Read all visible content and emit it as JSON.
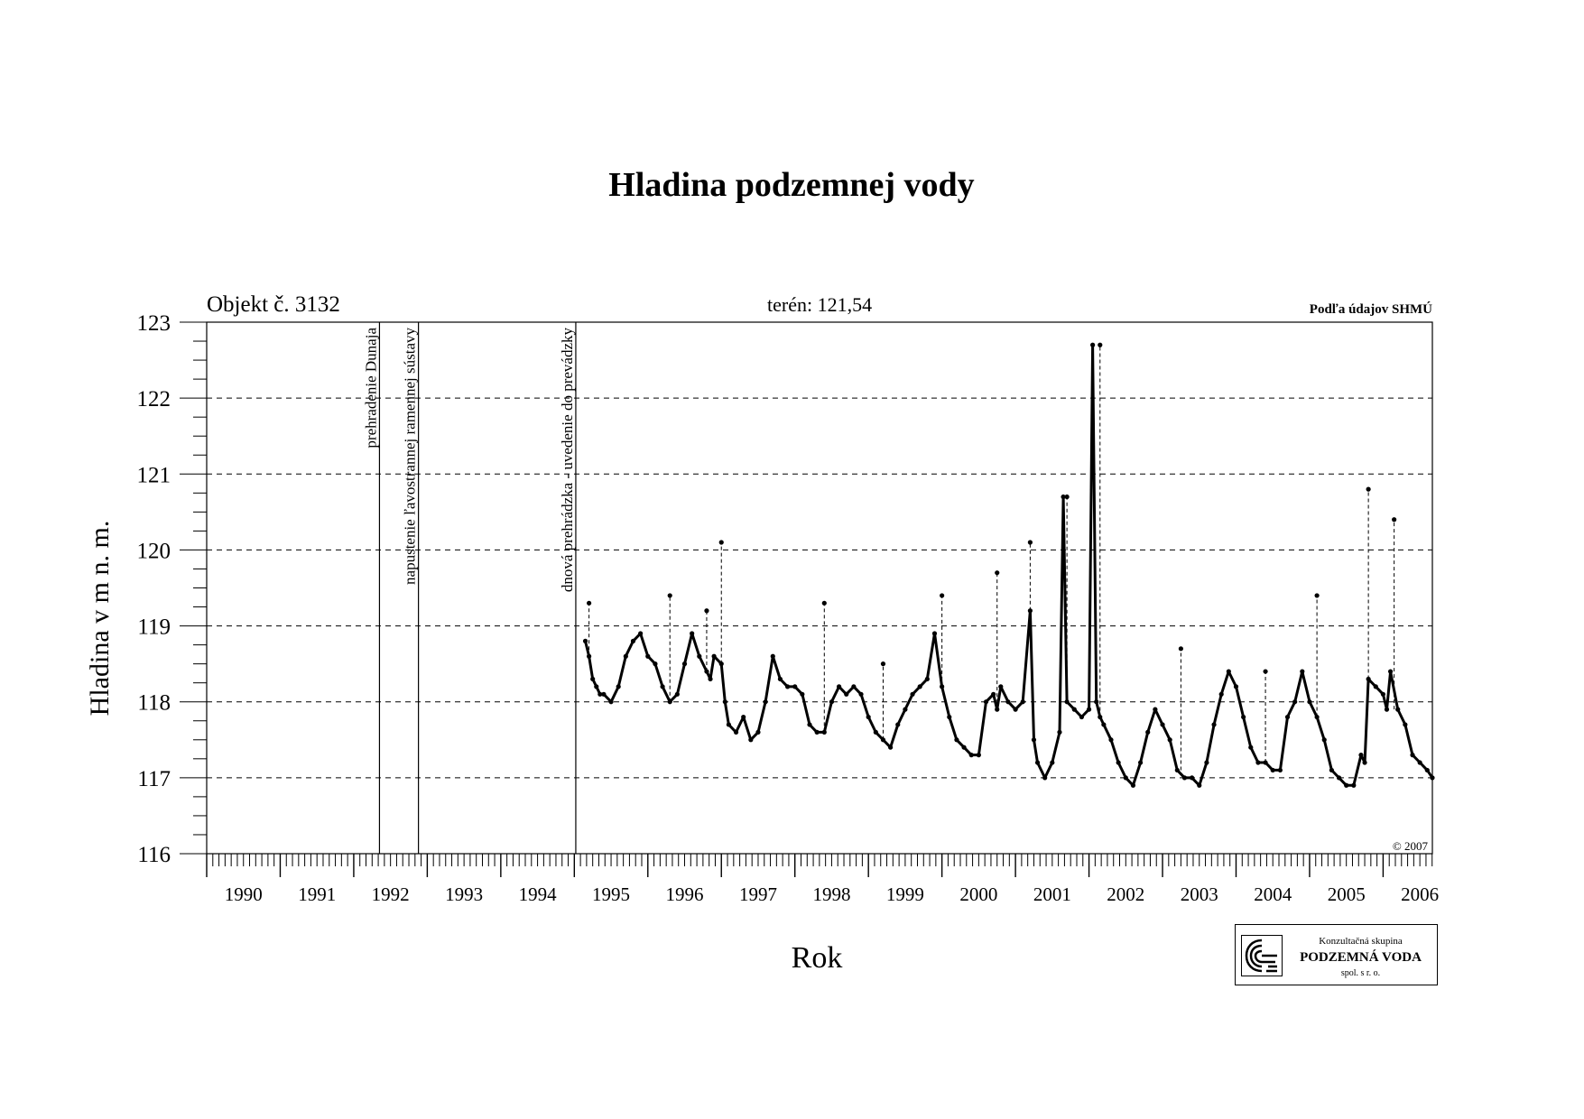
{
  "title": "Hladina podzemnej vody",
  "object_label": "Objekt č. 3132",
  "terrain_label": "terén: 121,54",
  "source_label": "Podľa údajov SHMÚ",
  "copyright": "© 2007",
  "logo": {
    "line1": "Konzultačná skupina",
    "line2": "PODZEMNÁ VODA",
    "line3": "spol. s r. o."
  },
  "chart_data": {
    "type": "line",
    "title": "Hladina podzemnej vody",
    "xlabel": "Rok",
    "ylabel": "Hladina v m n. m.",
    "xlim": [
      1990.0,
      2006.67
    ],
    "ylim": [
      116,
      123
    ],
    "y_ticks": [
      116,
      117,
      118,
      119,
      120,
      121,
      122,
      123
    ],
    "year_labels": [
      "1990",
      "1991",
      "1992",
      "1993",
      "1994",
      "1995",
      "1996",
      "1997",
      "1998",
      "1999",
      "2000",
      "2001",
      "2002",
      "2003",
      "2004",
      "2005",
      "2006"
    ],
    "grid": "horizontal dashed at 117–122",
    "events": [
      {
        "x": 1992.35,
        "label": "prehradenie Dunaja"
      },
      {
        "x": 1992.88,
        "label": "napustenie ľavostrannej ramennej sústavy"
      },
      {
        "x": 1995.02,
        "label": "dnová prehrádzka - uvedenie do prevádzky"
      }
    ],
    "series": [
      {
        "x": [
          1995.15,
          1995.2,
          1995.25,
          1995.3,
          1995.35,
          1995.4,
          1995.5,
          1995.6,
          1995.7,
          1995.8,
          1995.9,
          1996.0,
          1996.1,
          1996.2,
          1996.3,
          1996.4,
          1996.5,
          1996.6,
          1996.7,
          1996.8,
          1996.85,
          1996.9,
          1997.0,
          1997.05,
          1997.1,
          1997.2,
          1997.3,
          1997.4,
          1997.5,
          1997.6,
          1997.7,
          1997.8,
          1997.9,
          1998.0,
          1998.1,
          1998.2,
          1998.3,
          1998.4,
          1998.5,
          1998.6,
          1998.7,
          1998.8,
          1998.9,
          1999.0,
          1999.1,
          1999.2,
          1999.3,
          1999.4,
          1999.5,
          1999.6,
          1999.7,
          1999.8,
          1999.9,
          2000.0,
          2000.1,
          2000.2,
          2000.3,
          2000.4,
          2000.5,
          2000.6,
          2000.7,
          2000.75,
          2000.8,
          2000.9,
          2001.0,
          2001.1,
          2001.2,
          2001.25,
          2001.3,
          2001.4,
          2001.5,
          2001.6,
          2001.65,
          2001.7,
          2001.8,
          2001.9,
          2002.0,
          2002.05,
          2002.1,
          2002.15,
          2002.2,
          2002.3,
          2002.4,
          2002.5,
          2002.6,
          2002.7,
          2002.8,
          2002.9,
          2003.0,
          2003.1,
          2003.2,
          2003.3,
          2003.4,
          2003.5,
          2003.6,
          2003.7,
          2003.8,
          2003.9,
          2004.0,
          2004.1,
          2004.2,
          2004.3,
          2004.4,
          2004.5,
          2004.6,
          2004.7,
          2004.8,
          2004.9,
          2005.0,
          2005.1,
          2005.2,
          2005.3,
          2005.4,
          2005.5,
          2005.6,
          2005.7,
          2005.75,
          2005.8,
          2005.9,
          2006.0,
          2006.05,
          2006.1,
          2006.2,
          2006.3,
          2006.4,
          2006.5,
          2006.6,
          2006.67
        ],
        "y": [
          118.8,
          118.6,
          118.3,
          118.2,
          118.1,
          118.1,
          118.0,
          118.2,
          118.6,
          118.8,
          118.9,
          118.6,
          118.5,
          118.2,
          118.0,
          118.1,
          118.5,
          118.9,
          118.6,
          118.4,
          118.3,
          118.6,
          118.5,
          118.0,
          117.7,
          117.6,
          117.8,
          117.5,
          117.6,
          118.0,
          118.6,
          118.3,
          118.2,
          118.2,
          118.1,
          117.7,
          117.6,
          117.6,
          118.0,
          118.2,
          118.1,
          118.2,
          118.1,
          117.8,
          117.6,
          117.5,
          117.4,
          117.7,
          117.9,
          118.1,
          118.2,
          118.3,
          118.9,
          118.2,
          117.8,
          117.5,
          117.4,
          117.3,
          117.3,
          118.0,
          118.1,
          117.9,
          118.2,
          118.0,
          117.9,
          118.0,
          119.2,
          117.5,
          117.2,
          117.0,
          117.2,
          117.6,
          120.7,
          118.0,
          117.9,
          117.8,
          117.9,
          122.7,
          118.0,
          117.8,
          117.7,
          117.5,
          117.2,
          117.0,
          116.9,
          117.2,
          117.6,
          117.9,
          117.7,
          117.5,
          117.1,
          117.0,
          117.0,
          116.9,
          117.2,
          117.7,
          118.1,
          118.4,
          118.2,
          117.8,
          117.4,
          117.2,
          117.2,
          117.1,
          117.1,
          117.8,
          118.0,
          118.4,
          118.0,
          117.8,
          117.5,
          117.1,
          117.0,
          116.9,
          116.9,
          117.3,
          117.2,
          118.3,
          118.2,
          118.1,
          117.9,
          118.4,
          117.9,
          117.7,
          117.3,
          117.2,
          117.1,
          117.0
        ],
        "spikes": [
          [
            1995.2,
            119.3
          ],
          [
            1996.3,
            119.4
          ],
          [
            1996.8,
            119.2
          ],
          [
            1997.0,
            120.1
          ],
          [
            1998.4,
            119.3
          ],
          [
            1999.2,
            118.5
          ],
          [
            2000.0,
            119.4
          ],
          [
            2000.75,
            119.7
          ],
          [
            2001.2,
            120.1
          ],
          [
            2001.7,
            120.7
          ],
          [
            2002.15,
            122.7
          ],
          [
            2003.25,
            118.7
          ],
          [
            2004.4,
            118.4
          ],
          [
            2005.1,
            119.4
          ],
          [
            2005.8,
            120.8
          ],
          [
            2006.15,
            120.4
          ]
        ]
      }
    ]
  }
}
